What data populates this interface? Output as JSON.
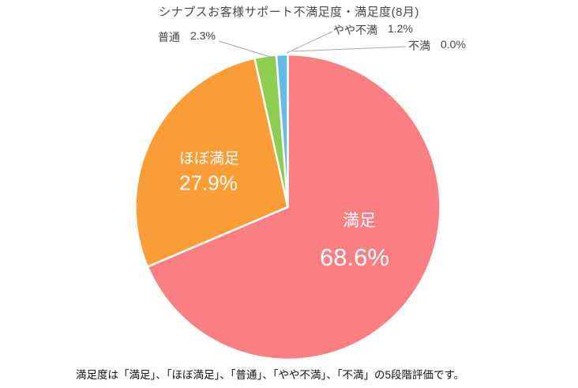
{
  "title": "シナプスお客様サポート不満足度・満足度(8月)",
  "footnote": "満足度は「満足」、「ほぼ満足」、「普通」、「やや不満」、「不満」の5段階評価です。",
  "colors": {
    "satisfied": "#f97f83",
    "mostly_satisfied": "#fb9d37",
    "neutral": "#8dce50",
    "slightly_dissatisfied": "#63bbe9",
    "leader_line": "#a6a6a6",
    "inside_label_text": "#ffffff",
    "slice_border": "#ffffff"
  },
  "chart_data": {
    "type": "pie",
    "title": "シナプスお客様サポート不満足度・満足度(8月)",
    "categories": [
      "満足",
      "ほぼ満足",
      "普通",
      "やや不満",
      "不満"
    ],
    "values": [
      68.6,
      27.9,
      2.3,
      1.2,
      0.0
    ],
    "unit": "%",
    "start_angle_deg": 0,
    "direction": "clockwise",
    "legend": "none",
    "slices": [
      {
        "label": "満足",
        "value": 68.6,
        "pct_label": "68.6%",
        "color": "#f97f83",
        "label_placement": "inside"
      },
      {
        "label": "ほぼ満足",
        "value": 27.9,
        "pct_label": "27.9%",
        "color": "#fb9d37",
        "label_placement": "inside"
      },
      {
        "label": "普通",
        "value": 2.3,
        "pct_label": "2.3%",
        "color": "#8dce50",
        "label_placement": "outside"
      },
      {
        "label": "やや不満",
        "value": 1.2,
        "pct_label": "1.2%",
        "color": "#63bbe9",
        "label_placement": "outside"
      },
      {
        "label": "不満",
        "value": 0.0,
        "pct_label": "0.0%",
        "color": null,
        "label_placement": "outside"
      }
    ]
  },
  "labels": {
    "inside": [
      {
        "name": "満足",
        "pct": "68.6%"
      },
      {
        "name": "ほぼ満足",
        "pct": "27.9%"
      }
    ],
    "outside": [
      {
        "name": "普通",
        "pct": "2.3%"
      },
      {
        "name": "やや不満",
        "pct": "1.2%"
      },
      {
        "name": "不満",
        "pct": "0.0%"
      }
    ]
  }
}
